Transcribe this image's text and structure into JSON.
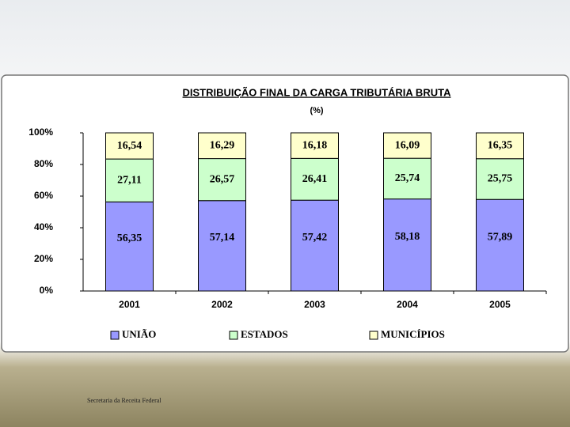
{
  "chart_data": {
    "type": "stacked-bar",
    "title": "DISTRIBUIÇÃO FINAL DA CARGA TRIBUTÁRIA BRUTA",
    "subtitle": "(%)",
    "categories": [
      "2001",
      "2002",
      "2003",
      "2004",
      "2005"
    ],
    "series": [
      {
        "name": "UNIÃO",
        "color": "#9999ff",
        "values": [
          56.35,
          57.14,
          57.42,
          58.18,
          57.89
        ],
        "value_labels": [
          "56,35",
          "57,14",
          "57,42",
          "58,18",
          "57,89"
        ]
      },
      {
        "name": "ESTADOS",
        "color": "#ccffcc",
        "values": [
          27.11,
          26.57,
          26.41,
          25.74,
          25.75
        ],
        "value_labels": [
          "27,11",
          "26,57",
          "26,41",
          "25,74",
          "25,75"
        ]
      },
      {
        "name": "MUNICÍPIOS",
        "color": "#ffffcc",
        "values": [
          16.54,
          16.29,
          16.18,
          16.09,
          16.35
        ],
        "value_labels": [
          "16,54",
          "16,29",
          "16,18",
          "16,09",
          "16,35"
        ]
      }
    ],
    "ylim": [
      0,
      100
    ],
    "yticks": [
      {
        "value": 0,
        "label": "0%"
      },
      {
        "value": 20,
        "label": "20%"
      },
      {
        "value": 40,
        "label": "40%"
      },
      {
        "value": 60,
        "label": "60%"
      },
      {
        "value": 80,
        "label": "80%"
      },
      {
        "value": 100,
        "label": "100%"
      }
    ],
    "grid": false,
    "legend": "bottom"
  },
  "footer": "Secretaria da Receita Federal"
}
